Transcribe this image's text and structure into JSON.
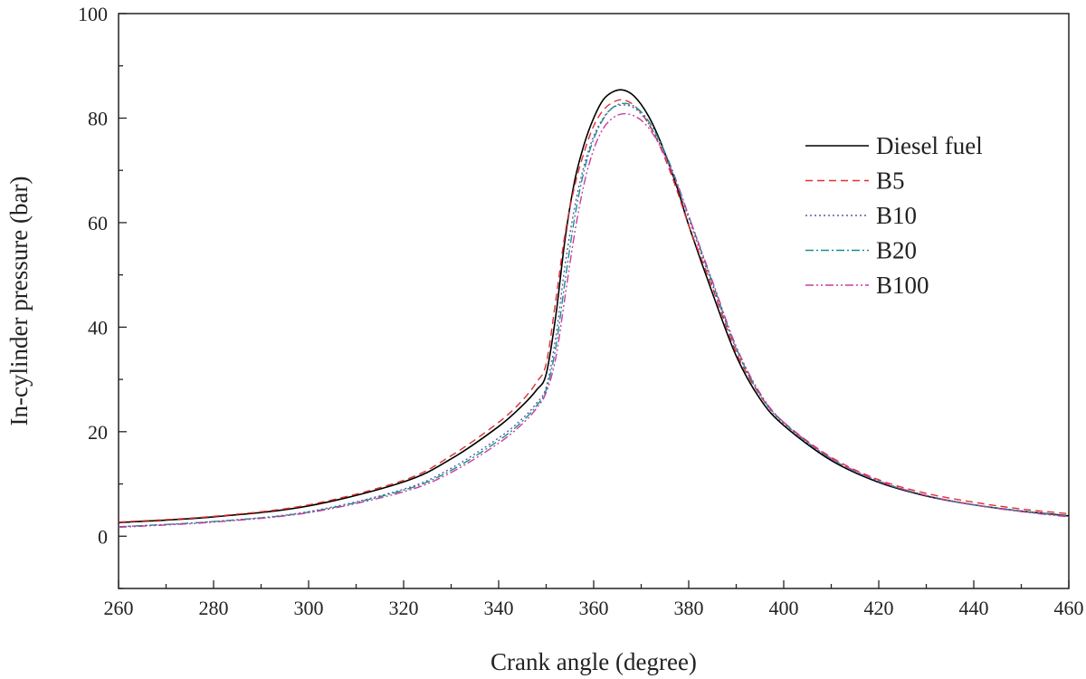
{
  "chart_data": {
    "type": "line",
    "title": "",
    "xlabel": "Crank angle (degree)",
    "ylabel": "In-cylinder pressure (bar)",
    "xlim": [
      260,
      460
    ],
    "ylim": [
      -10,
      100
    ],
    "xticks": [
      260,
      280,
      300,
      320,
      340,
      360,
      380,
      400,
      420,
      440,
      460
    ],
    "yticks": [
      0,
      20,
      40,
      60,
      80,
      100
    ],
    "grid": false,
    "legend_position": "right",
    "series": [
      {
        "name": "Diesel fuel",
        "color": "#000000",
        "dash": "solid",
        "x": [
          260,
          280,
          300,
          320,
          330,
          340,
          345,
          348,
          350,
          352,
          354,
          356,
          358,
          360,
          362,
          364,
          366,
          368,
          370,
          372,
          374,
          376,
          378,
          380,
          385,
          390,
          395,
          400,
          410,
          420,
          430,
          440,
          450,
          460
        ],
        "y": [
          2.6,
          3.7,
          5.8,
          10.4,
          14.8,
          21.0,
          25.0,
          28.0,
          31.0,
          42.0,
          57.0,
          68.0,
          75.0,
          80.0,
          83.5,
          85.0,
          85.4,
          84.6,
          82.6,
          79.6,
          75.6,
          70.8,
          65.5,
          59.5,
          46.5,
          34.5,
          26.3,
          21.2,
          14.5,
          10.3,
          7.7,
          6.0,
          4.8,
          3.9
        ]
      },
      {
        "name": "B5",
        "color": "#e03030",
        "dash": "8,5",
        "x": [
          260,
          280,
          300,
          320,
          330,
          340,
          345,
          348,
          350,
          352,
          354,
          356,
          358,
          360,
          362,
          364,
          366,
          368,
          370,
          372,
          374,
          376,
          378,
          380,
          385,
          390,
          395,
          400,
          410,
          420,
          430,
          440,
          450,
          460
        ],
        "y": [
          2.7,
          3.8,
          6.0,
          10.7,
          15.4,
          21.8,
          26.0,
          29.5,
          33.0,
          45.0,
          58.0,
          67.0,
          73.5,
          78.5,
          81.5,
          83.0,
          83.5,
          82.8,
          81.0,
          78.2,
          74.5,
          70.0,
          64.9,
          59.5,
          47.5,
          35.2,
          27.0,
          21.8,
          15.1,
          10.8,
          8.2,
          6.5,
          5.2,
          4.3
        ]
      },
      {
        "name": "B10",
        "color": "#5a5aa0",
        "dash": "2,3",
        "x": [
          260,
          280,
          300,
          320,
          330,
          340,
          345,
          348,
          350,
          352,
          354,
          356,
          358,
          360,
          362,
          364,
          366,
          368,
          370,
          372,
          374,
          376,
          378,
          380,
          385,
          390,
          395,
          400,
          410,
          420,
          430,
          440,
          450,
          460
        ],
        "y": [
          1.8,
          2.8,
          4.7,
          9.0,
          13.0,
          18.8,
          22.5,
          25.5,
          28.5,
          38.0,
          52.0,
          63.0,
          71.0,
          76.5,
          80.0,
          82.0,
          82.5,
          82.2,
          80.8,
          78.3,
          74.9,
          70.8,
          66.0,
          60.8,
          48.0,
          35.8,
          27.0,
          21.6,
          14.8,
          10.5,
          7.8,
          6.0,
          4.8,
          3.8
        ]
      },
      {
        "name": "B20",
        "color": "#1a8f8f",
        "dash": "9,3,2,3",
        "x": [
          260,
          280,
          300,
          320,
          330,
          340,
          345,
          348,
          350,
          352,
          354,
          356,
          358,
          360,
          362,
          364,
          366,
          368,
          370,
          372,
          374,
          376,
          378,
          380,
          385,
          390,
          395,
          400,
          410,
          420,
          430,
          440,
          450,
          460
        ],
        "y": [
          1.8,
          2.8,
          4.6,
          8.8,
          12.6,
          18.3,
          22.0,
          25.0,
          28.0,
          36.0,
          49.0,
          61.0,
          70.0,
          76.0,
          79.8,
          82.0,
          82.8,
          82.5,
          81.2,
          78.8,
          75.4,
          71.3,
          66.5,
          61.3,
          48.5,
          36.0,
          27.2,
          21.7,
          14.8,
          10.5,
          7.8,
          6.0,
          4.8,
          3.8
        ]
      },
      {
        "name": "B100",
        "color": "#cc3aa0",
        "dash": "9,3,2,3,2,3",
        "x": [
          260,
          280,
          300,
          320,
          330,
          340,
          345,
          348,
          350,
          352,
          354,
          356,
          358,
          360,
          362,
          364,
          366,
          368,
          370,
          372,
          374,
          376,
          378,
          380,
          385,
          390,
          395,
          400,
          410,
          420,
          430,
          440,
          450,
          460
        ],
        "y": [
          1.7,
          2.7,
          4.5,
          8.5,
          12.2,
          17.8,
          21.5,
          24.5,
          27.5,
          34.0,
          46.0,
          58.0,
          67.5,
          74.0,
          78.0,
          80.0,
          80.8,
          80.6,
          79.6,
          77.6,
          74.6,
          70.8,
          66.3,
          61.3,
          48.8,
          36.3,
          27.4,
          21.8,
          14.9,
          10.6,
          7.8,
          6.0,
          4.7,
          3.7
        ]
      }
    ]
  }
}
